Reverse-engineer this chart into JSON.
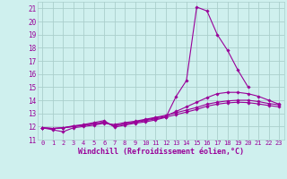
{
  "xlabel": "Windchill (Refroidissement éolien,°C)",
  "background_color": "#cff0ee",
  "grid_color": "#aacfcc",
  "line_color": "#990099",
  "xlim": [
    -0.5,
    23.5
  ],
  "ylim": [
    11,
    21.5
  ],
  "yticks": [
    11,
    12,
    13,
    14,
    15,
    16,
    17,
    18,
    19,
    20,
    21
  ],
  "xticks": [
    0,
    1,
    2,
    3,
    4,
    5,
    6,
    7,
    8,
    9,
    10,
    11,
    12,
    13,
    14,
    15,
    16,
    17,
    18,
    19,
    20,
    21,
    22,
    23
  ],
  "series": [
    {
      "x": [
        0,
        1,
        2,
        3,
        4,
        5,
        6,
        7,
        8,
        9,
        10,
        11,
        12,
        13,
        14,
        15,
        16,
        17,
        18,
        19,
        20
      ],
      "y": [
        11.9,
        11.85,
        11.9,
        12.05,
        12.15,
        12.3,
        12.45,
        11.95,
        12.1,
        12.25,
        12.35,
        12.5,
        12.7,
        14.3,
        15.5,
        21.1,
        20.8,
        19.0,
        17.8,
        16.3,
        15.0
      ]
    },
    {
      "x": [
        0,
        1,
        2,
        3,
        4,
        5,
        6,
        7,
        8,
        9,
        10,
        11,
        12,
        13,
        14,
        15,
        16,
        17,
        18,
        19,
        20,
        21,
        22,
        23
      ],
      "y": [
        11.9,
        11.85,
        11.9,
        12.0,
        12.1,
        12.2,
        12.35,
        12.05,
        12.2,
        12.35,
        12.5,
        12.65,
        12.8,
        13.15,
        13.5,
        13.85,
        14.2,
        14.5,
        14.6,
        14.6,
        14.5,
        14.3,
        14.0,
        13.7
      ]
    },
    {
      "x": [
        0,
        1,
        2,
        3,
        4,
        5,
        6,
        7,
        8,
        9,
        10,
        11,
        12,
        13,
        14,
        15,
        16,
        17,
        18,
        19,
        20,
        21,
        22,
        23
      ],
      "y": [
        11.9,
        11.75,
        11.6,
        11.9,
        12.0,
        12.1,
        12.25,
        12.15,
        12.3,
        12.4,
        12.55,
        12.7,
        12.85,
        13.05,
        13.25,
        13.45,
        13.7,
        13.85,
        13.95,
        14.0,
        14.0,
        13.9,
        13.75,
        13.65
      ]
    },
    {
      "x": [
        0,
        1,
        2,
        3,
        4,
        5,
        6,
        7,
        8,
        9,
        10,
        11,
        12,
        13,
        14,
        15,
        16,
        17,
        18,
        19,
        20,
        21,
        22,
        23
      ],
      "y": [
        11.9,
        11.85,
        11.9,
        12.0,
        12.1,
        12.2,
        12.3,
        12.05,
        12.2,
        12.3,
        12.45,
        12.58,
        12.72,
        12.9,
        13.1,
        13.3,
        13.55,
        13.7,
        13.8,
        13.85,
        13.82,
        13.72,
        13.6,
        13.5
      ]
    }
  ]
}
